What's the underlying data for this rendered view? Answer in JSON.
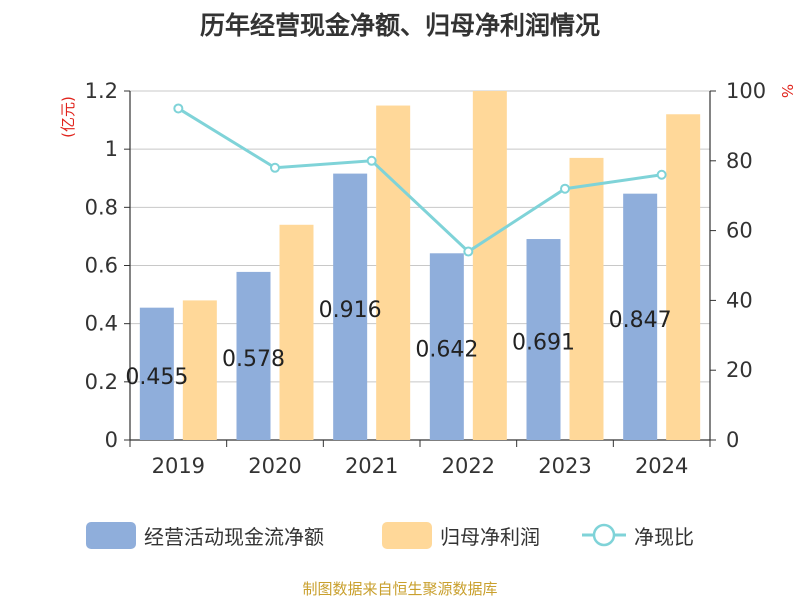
{
  "title": "历年经营现金净额、归母净利润情况",
  "source": "制图数据来自恒生聚源数据库",
  "colors": {
    "cash_flow": "#8faedb",
    "net_profit": "#ffd899",
    "ratio_line": "#7fd3d8",
    "unit_text": "#e0231c",
    "source_text": "#c9a02e",
    "grid": "#c8c8c8",
    "axis": "#333333"
  },
  "legend": {
    "items": [
      {
        "label": "经营活动现金流净额"
      },
      {
        "label": "归母净利润"
      },
      {
        "label": "净现比"
      }
    ]
  },
  "chart_data": {
    "type": "bar",
    "title": "历年经营现金净额、归母净利润情况",
    "categories": [
      "2019",
      "2020",
      "2021",
      "2022",
      "2023",
      "2024"
    ],
    "series": [
      {
        "name": "经营活动现金流净额",
        "type": "bar",
        "axis": "left",
        "values": [
          0.455,
          0.578,
          0.916,
          0.642,
          0.691,
          0.847
        ],
        "data_labels": [
          "0.455",
          "0.578",
          "0.916",
          "0.642",
          "0.691",
          "0.847"
        ]
      },
      {
        "name": "归母净利润",
        "type": "bar",
        "axis": "left",
        "values": [
          0.48,
          0.74,
          1.15,
          1.2,
          0.97,
          1.12
        ]
      },
      {
        "name": "净现比",
        "type": "line",
        "axis": "right",
        "values": [
          95,
          78,
          80,
          54,
          72,
          76
        ]
      }
    ],
    "y_left": {
      "label": "(亿元)",
      "ylim": [
        0,
        1.2
      ],
      "ticks": [
        0,
        0.2,
        0.4,
        0.6,
        0.8,
        1,
        1.2
      ],
      "tick_labels": [
        "0",
        "0.2",
        "0.4",
        "0.6",
        "0.8",
        "1",
        "1.2"
      ]
    },
    "y_right": {
      "label": "%",
      "ylim": [
        0,
        100
      ],
      "ticks": [
        0,
        20,
        40,
        60,
        80,
        100
      ],
      "tick_labels": [
        "0",
        "20",
        "40",
        "60",
        "80",
        "100"
      ]
    },
    "grid": true,
    "legend_position": "bottom"
  }
}
